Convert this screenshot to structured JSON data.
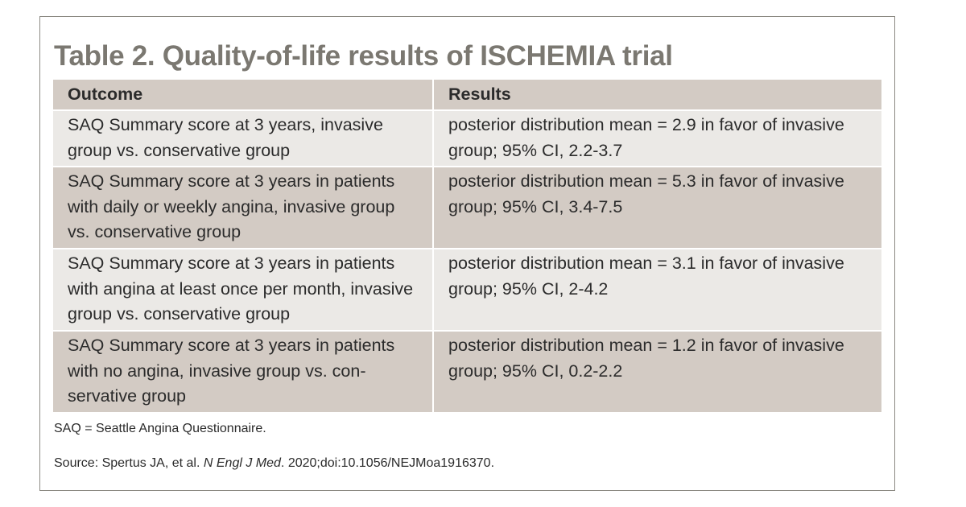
{
  "title": "Table 2. Quality-of-life results of ISCHEMIA trial",
  "table": {
    "headers": [
      "Outcome",
      "Results"
    ],
    "rows": [
      {
        "outcome": "SAQ Summary score at 3 years, invasive group vs. conservative group",
        "result": "posterior distribution mean = 2.9 in favor of invasive group; 95% CI, 2.2-3.7"
      },
      {
        "outcome": "SAQ Summary score at 3 years in patients with daily or weekly angina, invasive group vs. conservative group",
        "result": "posterior distribution mean = 5.3 in favor of invasive group; 95% CI, 3.4-7.5"
      },
      {
        "outcome": "SAQ Summary score at 3 years in patients with angina at least once per month, invasive group vs. conservative group",
        "result": "posterior distribution mean = 3.1 in favor of invasive group; 95% CI, 2-4.2"
      },
      {
        "outcome": "SAQ Summary score at 3 years in patients with no angina, invasive group vs. con­servative group",
        "result": "posterior distribution mean = 1.2 in favor of invasive group; 95% CI, 0.2-2.2"
      }
    ]
  },
  "footnote": {
    "abbreviation": "SAQ = Seattle Angina Questionnaire.",
    "source_prefix": "Source: Spertus JA, et al. ",
    "source_journal": "N Engl J Med",
    "source_suffix": ". 2020;doi:10.1056/NEJMoa1916370."
  },
  "colors": {
    "title": "#7b7871",
    "header_bg": "#d3cbc4",
    "row_light": "#ebe9e6",
    "row_dark": "#d3cbc4",
    "frame": "#8c8a83"
  }
}
